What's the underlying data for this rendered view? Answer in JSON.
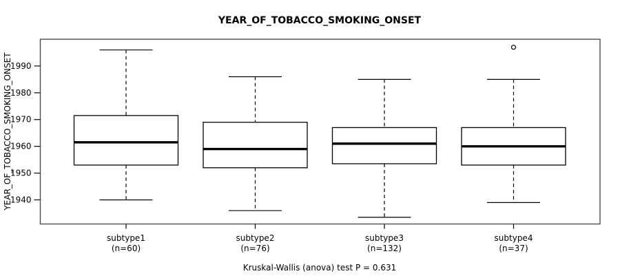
{
  "chart_data": {
    "type": "boxplot",
    "title": "YEAR_OF_TOBACCO_SMOKING_ONSET",
    "ylabel": "YEAR_OF_TOBACCO_SMOKING_ONSET",
    "xlabel": "",
    "caption": "Kruskal-Wallis (anova) test P = 0.631",
    "ylim": [
      1931,
      2000
    ],
    "yticks": [
      1940,
      1950,
      1960,
      1970,
      1980,
      1990
    ],
    "grid": false,
    "legend": "none",
    "groups": [
      {
        "label": "subtype1",
        "sublabel": "(n=60)",
        "n": 60,
        "whisker_low": 1940,
        "q1": 1953,
        "median": 1961.5,
        "q3": 1971.5,
        "whisker_high": 1996,
        "outliers": []
      },
      {
        "label": "subtype2",
        "sublabel": "(n=76)",
        "n": 76,
        "whisker_low": 1936,
        "q1": 1952,
        "median": 1959,
        "q3": 1969,
        "whisker_high": 1986,
        "outliers": []
      },
      {
        "label": "subtype3",
        "sublabel": "(n=132)",
        "n": 132,
        "whisker_low": 1933.5,
        "q1": 1953.5,
        "median": 1961,
        "q3": 1967,
        "whisker_high": 1985,
        "outliers": []
      },
      {
        "label": "subtype4",
        "sublabel": "(n=37)",
        "n": 37,
        "whisker_low": 1939,
        "q1": 1953,
        "median": 1960,
        "q3": 1967,
        "whisker_high": 1985,
        "outliers": [
          1997
        ]
      }
    ],
    "colors": {
      "line": "#000000",
      "frame": "#4d4d4d",
      "box_fill": "#ffffff",
      "background": "#ffffff"
    }
  }
}
